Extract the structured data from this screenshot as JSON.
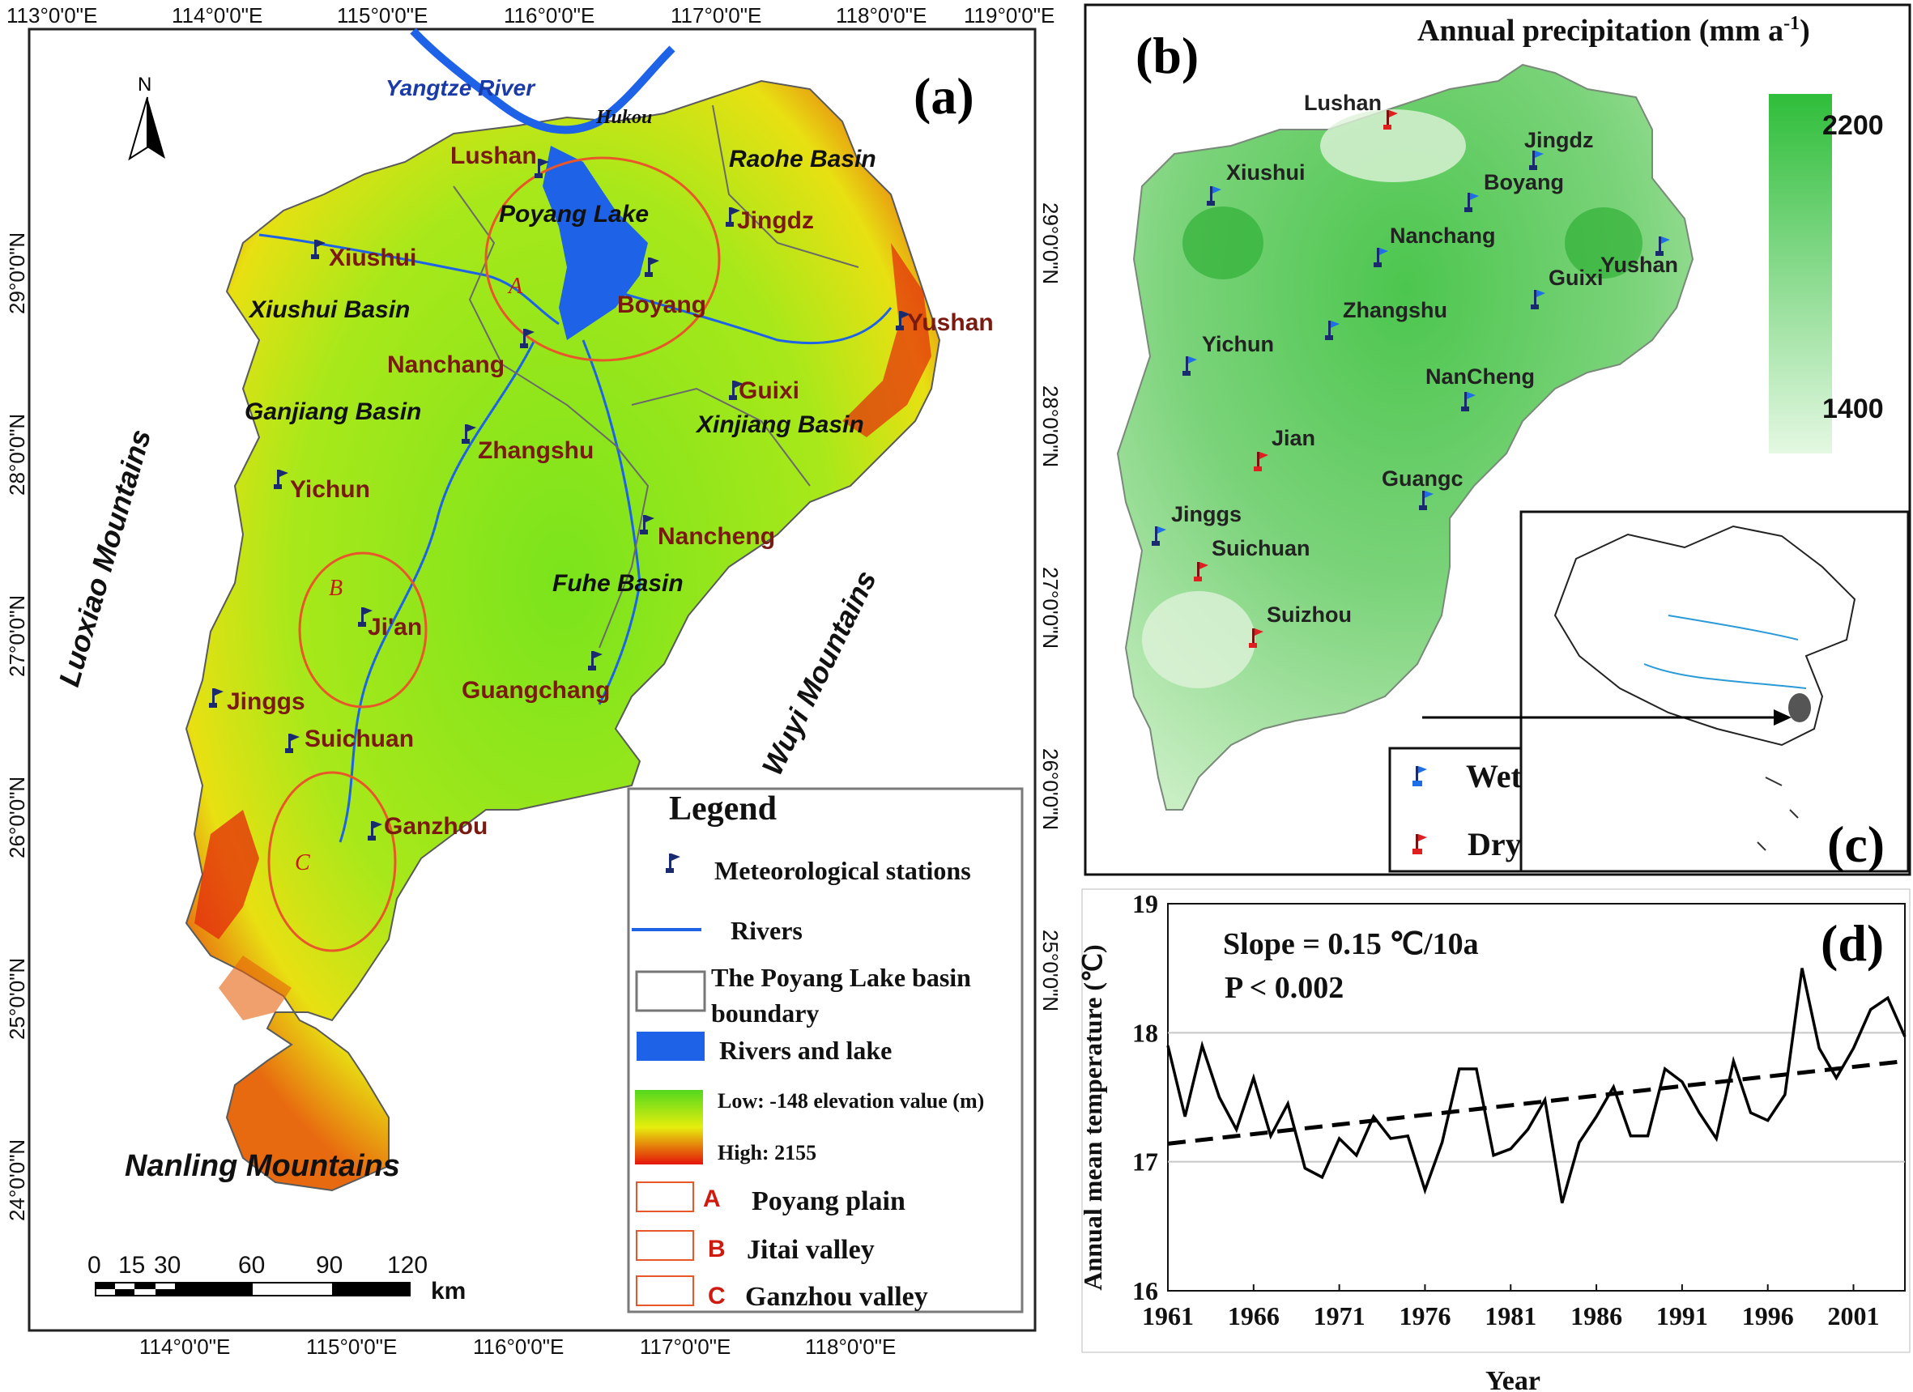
{
  "panel_a": {
    "label": "(a)",
    "top_lon_ticks": [
      "113°0'0\"E",
      "114°0'0\"E",
      "115°0'0\"E",
      "116°0'0\"E",
      "117°0'0\"E",
      "118°0'0\"E",
      "119°0'0\"E"
    ],
    "bottom_lon_ticks": [
      "114°0'0\"E",
      "115°0'0\"E",
      "116°0'0\"E",
      "117°0'0\"E",
      "118°0'0\"E"
    ],
    "lat_ticks": [
      "29°0'0\"N",
      "28°0'0\"N",
      "27°0'0\"N",
      "26°0'0\"N",
      "25°0'0\"N",
      "24°0'0\"N"
    ],
    "north_label": "N",
    "scale_numbers": [
      "0",
      "15",
      "30",
      "60",
      "90",
      "120"
    ],
    "scale_unit": "km",
    "places": {
      "yangtze": "Yangtze River",
      "hukou": "Hukou",
      "lushan": "Lushan",
      "poyang_lake": "Poyang Lake",
      "raohe": "Raohe Basin",
      "jingdz": "Jingdz",
      "xiushui": "Xiushui",
      "xiushui_basin": "Xiushui Basin",
      "boyang": "Boyang",
      "yushan": "Yushan",
      "nanchang": "Nanchang",
      "ganjiang": "Ganjiang Basin",
      "guixi": "Guixi",
      "xinjiang": "Xinjiang Basin",
      "zhangshu": "Zhangshu",
      "yichun": "Yichun",
      "nancheng": "Nancheng",
      "luoxiao": "Luoxiao Mountains",
      "wuyi": "Wuyi Mountains",
      "fuhe": "Fuhe Basin",
      "jian": "Ji'an",
      "guangchang": "Guangchang",
      "jinggs": "Jinggs",
      "suichuan": "Suichuan",
      "ganzhou": "Ganzhou",
      "nanling": "Nanling Mountains",
      "zone_a": "A",
      "zone_b": "B",
      "zone_c": "C"
    },
    "legend": {
      "title": "Legend",
      "stations": "Meteorological stations",
      "rivers": "Rivers",
      "boundary_1": "The Poyang Lake basin",
      "boundary_2": "boundary",
      "rivers_lake": "Rivers and lake",
      "low": "Low: -148 elevation value (m)",
      "high": "High: 2155",
      "a_letter": "A",
      "a_text": "Poyang plain",
      "b_letter": "B",
      "b_text": "Jitai valley",
      "c_letter": "C",
      "c_text": "Ganzhou valley"
    },
    "colors": {
      "elev_low": "#52d81e",
      "elev_mid": "#e6ee0c",
      "elev_high": "#e4140a",
      "water": "#1e62e8",
      "zone": "#e8562a",
      "station": "#1a2a6e",
      "place_text": "#7a1a10"
    }
  },
  "panel_b": {
    "label": "(b)",
    "title": "Annual precipitation (mm a",
    "title_sup": "-1",
    "title_end": ")",
    "scale_high": "2200",
    "scale_low": "1400",
    "stations": {
      "lushan": "Lushan",
      "xiushui": "Xiushui",
      "jingdz": "Jingdz",
      "boyang": "Boyang",
      "nanchang": "Nanchang",
      "guixi": "Guixi",
      "yushan": "Yushan",
      "zhangshu": "Zhangshu",
      "yichun": "Yichun",
      "nancheng": "NanCheng",
      "jian": "Jian",
      "guangc": "Guangc",
      "jinggs": "Jinggs",
      "suichuan": "Suichuan",
      "suizhou": "Suizhou"
    },
    "legend_wet": "Wet stations",
    "legend_dry": "Dry stations",
    "colors": {
      "wet": "#1e6ee8",
      "dry": "#e02020",
      "dark": "#1a2a6e"
    }
  },
  "panel_c": {
    "label": "(c)"
  },
  "panel_d": {
    "label": "(d)",
    "slope_text": "Slope = 0.15 ℃/10a",
    "p_text": "P < 0.002",
    "chart_data": {
      "type": "line",
      "xlabel": "Year",
      "ylabel": "Annual mean temperature (℃)",
      "ylim": [
        16,
        19
      ],
      "xlim": [
        1961,
        2004
      ],
      "yticks": [
        "16",
        "17",
        "18",
        "19"
      ],
      "xticks": [
        "1961",
        "1966",
        "1971",
        "1976",
        "1981",
        "1986",
        "1991",
        "1996",
        "2001"
      ],
      "grid": "horizontal",
      "x": [
        1961,
        1962,
        1963,
        1964,
        1965,
        1966,
        1967,
        1968,
        1969,
        1970,
        1971,
        1972,
        1973,
        1974,
        1975,
        1976,
        1977,
        1978,
        1979,
        1980,
        1981,
        1982,
        1983,
        1984,
        1985,
        1986,
        1987,
        1988,
        1989,
        1990,
        1991,
        1992,
        1993,
        1994,
        1995,
        1996,
        1997,
        1998,
        1999,
        2000,
        2001,
        2002,
        2003,
        2004
      ],
      "series": [
        {
          "values": [
            17.9,
            17.35,
            17.9,
            17.5,
            17.25,
            17.65,
            17.2,
            17.45,
            16.95,
            16.88,
            17.18,
            17.05,
            17.35,
            17.18,
            17.2,
            16.78,
            17.15,
            17.72,
            17.72,
            17.05,
            17.1,
            17.25,
            17.48,
            16.68,
            17.15,
            17.35,
            17.58,
            17.2,
            17.2,
            17.72,
            17.62,
            17.38,
            17.18,
            17.78,
            17.38,
            17.32,
            17.52,
            18.5,
            17.88,
            17.65,
            17.88,
            18.18,
            18.27,
            17.97
          ]
        },
        {
          "values": [
            17.14,
            17.78
          ],
          "x": [
            1961,
            2004
          ],
          "style": "dashed"
        }
      ]
    }
  }
}
